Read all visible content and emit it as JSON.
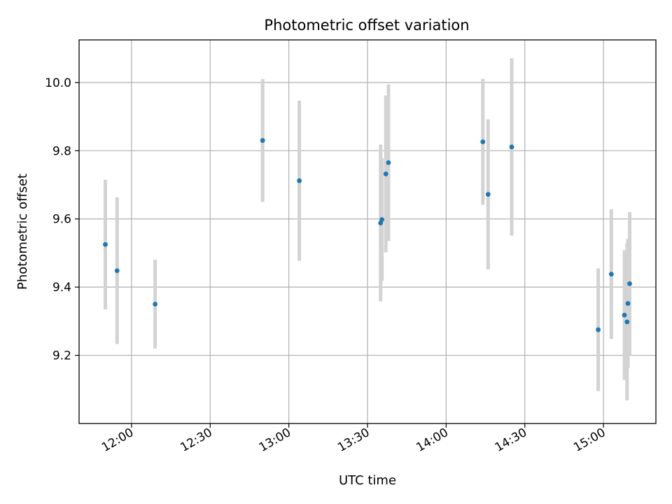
{
  "chart_data": {
    "type": "scatter",
    "title": "Photometric offset variation",
    "xlabel": "UTC time",
    "ylabel": "Photometric offset",
    "x_tick_labels": [
      "12:00",
      "12:30",
      "13:00",
      "13:30",
      "14:00",
      "14:30",
      "15:00"
    ],
    "y_tick_labels": [
      "9.2",
      "9.4",
      "9.6",
      "9.8",
      "10.0"
    ],
    "xlim": [
      "11:40",
      "15:20"
    ],
    "ylim": [
      9.0,
      10.125
    ],
    "grid": true,
    "legend": "none",
    "colors": {
      "point": "#1f77b4",
      "errorbar": "#d3d3d3",
      "grid": "#b0b0b0"
    },
    "points": [
      {
        "time": "11:50",
        "value": 9.525,
        "err": 0.19
      },
      {
        "time": "11:54:30",
        "value": 9.448,
        "err": 0.215
      },
      {
        "time": "12:09",
        "value": 9.35,
        "err": 0.13
      },
      {
        "time": "12:50",
        "value": 9.83,
        "err": 0.18
      },
      {
        "time": "13:04",
        "value": 9.712,
        "err": 0.235
      },
      {
        "time": "13:35",
        "value": 9.588,
        "err": 0.23
      },
      {
        "time": "13:35:30",
        "value": 9.598,
        "err": 0.18
      },
      {
        "time": "13:37",
        "value": 9.732,
        "err": 0.23
      },
      {
        "time": "13:38",
        "value": 9.765,
        "err": 0.23
      },
      {
        "time": "14:14",
        "value": 9.826,
        "err": 0.185
      },
      {
        "time": "14:16",
        "value": 9.672,
        "err": 0.22
      },
      {
        "time": "14:25",
        "value": 9.811,
        "err": 0.26
      },
      {
        "time": "14:58",
        "value": 9.275,
        "err": 0.18
      },
      {
        "time": "15:03",
        "value": 9.438,
        "err": 0.19
      },
      {
        "time": "15:08",
        "value": 9.318,
        "err": 0.19
      },
      {
        "time": "15:09",
        "value": 9.298,
        "err": 0.23
      },
      {
        "time": "15:09:20",
        "value": 9.352,
        "err": 0.19
      },
      {
        "time": "15:10",
        "value": 9.41,
        "err": 0.21
      }
    ]
  }
}
